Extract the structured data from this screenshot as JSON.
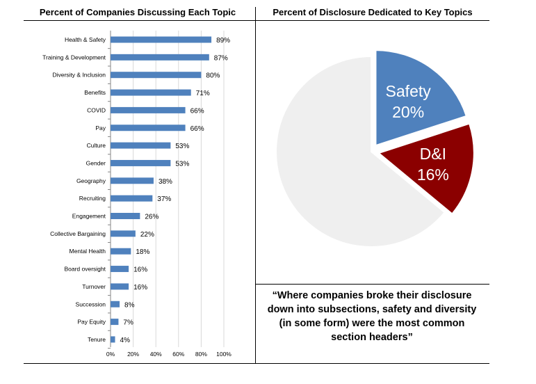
{
  "left_panel": {
    "title": "Percent of Companies Discussing Each Topic"
  },
  "right_panel": {
    "title": "Percent of Disclosure Dedicated to Key Topics"
  },
  "quote": "“Where companies broke their disclosure down into subsections, safety and diversity (in some form) were the most common section headers”",
  "chart_data": [
    {
      "type": "bar",
      "orientation": "horizontal",
      "title": "Percent of Companies Discussing Each Topic",
      "categories": [
        "Health & Safety",
        "Training & Development",
        "Diversity & Inclusion",
        "Benefits",
        "COVID",
        "Pay",
        "Culture",
        "Gender",
        "Geography",
        "Recruiting",
        "Engagement",
        "Collective Bargaining",
        "Mental Health",
        "Board oversight",
        "Turnover",
        "Succession",
        "Pay Equity",
        "Tenure"
      ],
      "values": [
        89,
        87,
        80,
        71,
        66,
        66,
        53,
        53,
        38,
        37,
        26,
        22,
        18,
        16,
        16,
        8,
        7,
        4
      ],
      "value_labels": [
        "89%",
        "87%",
        "80%",
        "71%",
        "66%",
        "66%",
        "53%",
        "53%",
        "38%",
        "37%",
        "26%",
        "22%",
        "18%",
        "16%",
        "16%",
        "8%",
        "7%",
        "4%"
      ],
      "xlim": [
        0,
        100
      ],
      "xticks": [
        "0%",
        "20%",
        "40%",
        "60%",
        "80%",
        "100%"
      ],
      "grid": "vertical",
      "bar_color": "#4f81bd"
    },
    {
      "type": "pie",
      "title": "Percent of Disclosure Dedicated to Key Topics",
      "slices": [
        {
          "label": "Safety",
          "value": 20,
          "value_label": "20%",
          "color": "#4f81bd",
          "exploded": true
        },
        {
          "label": "D&I",
          "value": 16,
          "value_label": "16%",
          "color": "#8b0000",
          "exploded": true
        },
        {
          "label": "",
          "value": 64,
          "color": "#efefef",
          "exploded": false
        }
      ]
    }
  ]
}
